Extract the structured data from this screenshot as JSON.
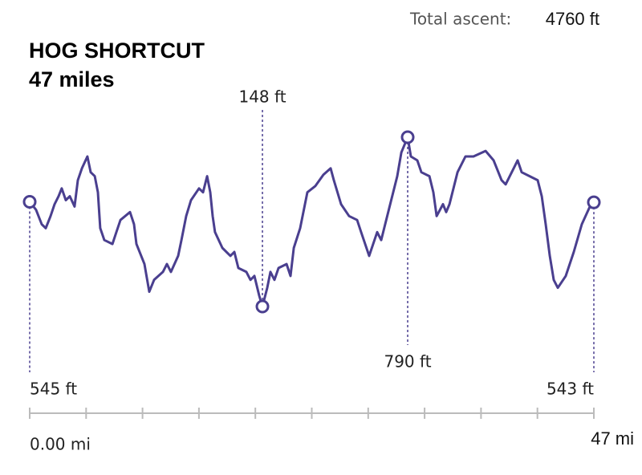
{
  "chart_data": {
    "type": "line",
    "title": "HOG SHORTCUT",
    "subtitle": "47 miles",
    "ascent_label": "Total ascent:",
    "ascent_value": "4760 ft",
    "color": "#4a3f8f",
    "xlim": [
      0,
      47
    ],
    "ylim": [
      148,
      790
    ],
    "xticks": [
      {
        "value": 0,
        "label": "0.00 mi"
      },
      {
        "value": 47,
        "label": "47 mi"
      }
    ],
    "minor_xticks": [
      4.7,
      9.4,
      14.1,
      18.8,
      23.5,
      28.2,
      32.9,
      37.6,
      42.3
    ],
    "x": [
      0,
      0.53,
      1.0,
      1.34,
      1.74,
      2.07,
      2.41,
      2.67,
      3.01,
      3.34,
      3.74,
      4.01,
      4.35,
      4.81,
      5.08,
      5.42,
      5.68,
      5.88,
      6.22,
      6.89,
      7.22,
      7.56,
      8.36,
      8.69,
      8.89,
      9.56,
      9.96,
      10.36,
      11.1,
      11.43,
      11.77,
      12.37,
      12.64,
      13.04,
      13.44,
      14.11,
      14.44,
      14.78,
      15.04,
      15.24,
      15.44,
      16.05,
      16.72,
      17.05,
      17.38,
      18.05,
      18.39,
      18.72,
      19.12,
      19.39,
      19.79,
      20.06,
      20.39,
      20.73,
      21.4,
      21.73,
      22.0,
      22.53,
      23.13,
      23.8,
      24.47,
      25.07,
      25.34,
      25.94,
      26.61,
      27.28,
      27.61,
      28.28,
      28.95,
      29.28,
      29.95,
      30.62,
      30.96,
      31.49,
      31.76,
      32.29,
      32.63,
      33.3,
      33.63,
      33.9,
      34.43,
      34.7,
      34.97,
      35.64,
      36.3,
      36.97,
      37.98,
      38.65,
      39.31,
      39.65,
      40.32,
      40.65,
      40.99,
      41.65,
      42.32,
      42.66,
      42.99,
      43.33,
      43.66,
      44.0,
      44.66,
      45.33,
      46.0,
      46.67,
      47
    ],
    "values": [
      545,
      515,
      460,
      445,
      491,
      536,
      566,
      596,
      551,
      566,
      527,
      627,
      672,
      717,
      657,
      642,
      581,
      445,
      400,
      385,
      430,
      476,
      506,
      460,
      385,
      309,
      204,
      249,
      279,
      309,
      279,
      340,
      400,
      491,
      551,
      596,
      581,
      642,
      581,
      491,
      430,
      370,
      340,
      355,
      294,
      279,
      249,
      264,
      189,
      148,
      219,
      279,
      249,
      294,
      309,
      264,
      370,
      445,
      581,
      605,
      648,
      672,
      627,
      536,
      491,
      476,
      430,
      340,
      430,
      400,
      521,
      642,
      732,
      790,
      717,
      702,
      657,
      642,
      581,
      491,
      536,
      506,
      536,
      657,
      717,
      717,
      738,
      702,
      627,
      611,
      672,
      702,
      657,
      642,
      627,
      566,
      460,
      340,
      249,
      219,
      264,
      355,
      460,
      527,
      543
    ],
    "markers": [
      {
        "x": 0,
        "value": 545,
        "label": "545 ft"
      },
      {
        "x": 19.39,
        "value": 148,
        "label": "148 ft"
      },
      {
        "x": 31.49,
        "value": 790,
        "label": "790 ft"
      },
      {
        "x": 47,
        "value": 543,
        "label": "543 ft"
      }
    ]
  }
}
